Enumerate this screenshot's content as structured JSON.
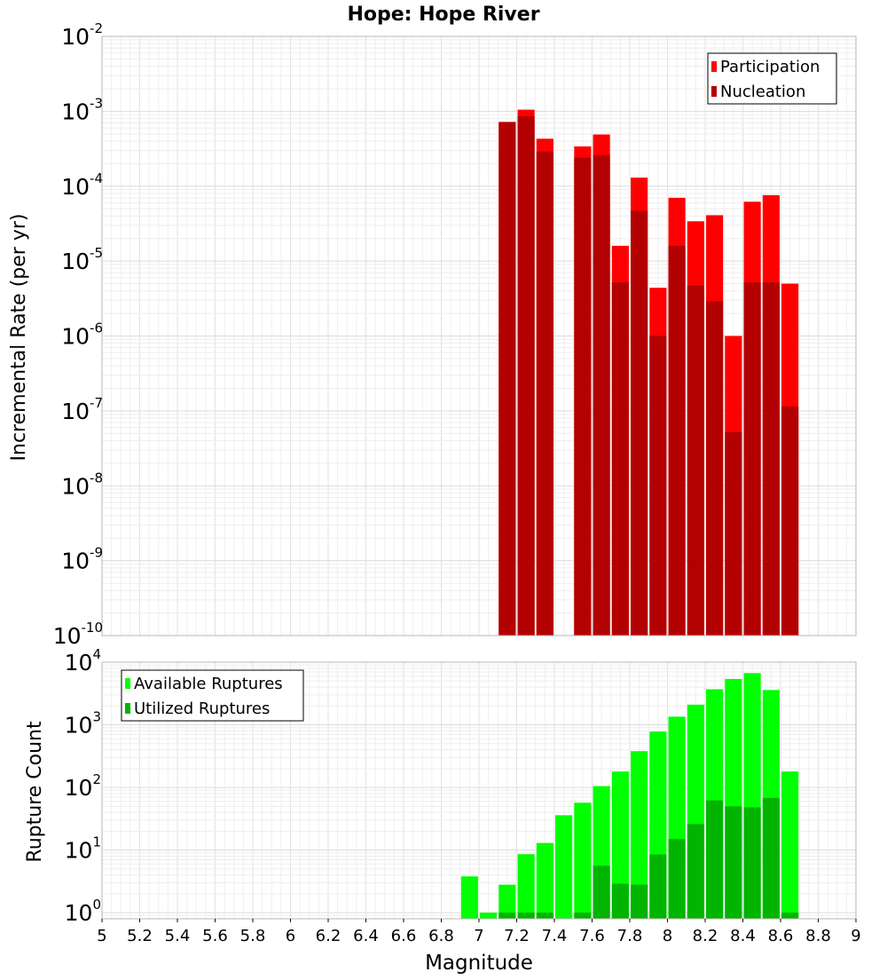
{
  "title": "Hope: Hope River",
  "xlabel": "Magnitude",
  "colors": {
    "participation": "#ff0000",
    "nucleation": "#b30000",
    "available": "#00ff00",
    "utilized": "#00b400",
    "grid": "#e6e6e6",
    "frame": "#b4b4b4"
  },
  "chart_data": [
    {
      "type": "bar",
      "title": "Hope: Hope River",
      "xlabel": "Magnitude",
      "ylabel": "Incremental Rate (per yr)",
      "yscale": "log",
      "xlim": [
        5,
        9
      ],
      "ylim": [
        1e-10,
        0.01
      ],
      "x_ticks": [
        "5",
        "5.2",
        "5.4",
        "5.6",
        "5.8",
        "6",
        "6.2",
        "6.4",
        "6.6",
        "6.8",
        "7",
        "7.2",
        "7.4",
        "7.6",
        "7.8",
        "8",
        "8.2",
        "8.4",
        "8.6",
        "8.8",
        "9"
      ],
      "y_tick_exponents": [
        "-10",
        "-9",
        "-8",
        "-7",
        "-6",
        "-5",
        "-4",
        "-3",
        "-2"
      ],
      "grid": true,
      "legend_position": "top-right",
      "bar_width": 0.09,
      "x": [
        7.15,
        7.25,
        7.35,
        7.45,
        7.55,
        7.65,
        7.75,
        7.85,
        7.95,
        8.05,
        8.15,
        8.25,
        8.35,
        8.45,
        8.55,
        8.65
      ],
      "series": [
        {
          "name": "Participation",
          "values": [
            0.00072,
            0.00105,
            0.00043,
            0,
            0.00034,
            0.00049,
            1.6e-05,
            0.00013,
            4.4e-06,
            7e-05,
            3.4e-05,
            4.1e-05,
            1e-06,
            6.2e-05,
            7.6e-05,
            5e-06
          ]
        },
        {
          "name": "Nucleation",
          "values": [
            0.00072,
            0.00086,
            0.00029,
            0,
            0.00024,
            0.00026,
            5.2e-06,
            4.7e-05,
            1e-06,
            1.6e-05,
            4.7e-06,
            2.9e-06,
            5.2e-08,
            5.2e-06,
            5.2e-06,
            1.15e-07
          ]
        }
      ]
    },
    {
      "type": "bar",
      "xlabel": "Magnitude",
      "ylabel": "Rupture Count",
      "yscale": "log",
      "xlim": [
        5,
        9
      ],
      "ylim": [
        0.8,
        10000
      ],
      "x_ticks": [
        "5",
        "5.2",
        "5.4",
        "5.6",
        "5.8",
        "6",
        "6.2",
        "6.4",
        "6.6",
        "6.8",
        "7",
        "7.2",
        "7.4",
        "7.6",
        "7.8",
        "8",
        "8.2",
        "8.4",
        "8.6",
        "8.8",
        "9"
      ],
      "y_tick_exponents": [
        "0",
        "1",
        "2",
        "3",
        "4"
      ],
      "grid": true,
      "legend_position": "top-left",
      "bar_width": 0.09,
      "x": [
        6.95,
        7.05,
        7.15,
        7.25,
        7.35,
        7.45,
        7.55,
        7.65,
        7.75,
        7.85,
        7.95,
        8.05,
        8.15,
        8.25,
        8.35,
        8.45,
        8.55,
        8.65
      ],
      "series": [
        {
          "name": "Available Ruptures",
          "values": [
            3.8,
            1,
            2.8,
            8.6,
            13,
            36,
            57,
            105,
            180,
            380,
            780,
            1350,
            2100,
            3700,
            5400,
            6700,
            3600,
            180
          ]
        },
        {
          "name": "Utilized Ruptures",
          "values": [
            0,
            0,
            1,
            1,
            1,
            0,
            1,
            5.6,
            2.9,
            2.8,
            8.5,
            15,
            26,
            62,
            50,
            48,
            68,
            1
          ]
        }
      ]
    }
  ]
}
